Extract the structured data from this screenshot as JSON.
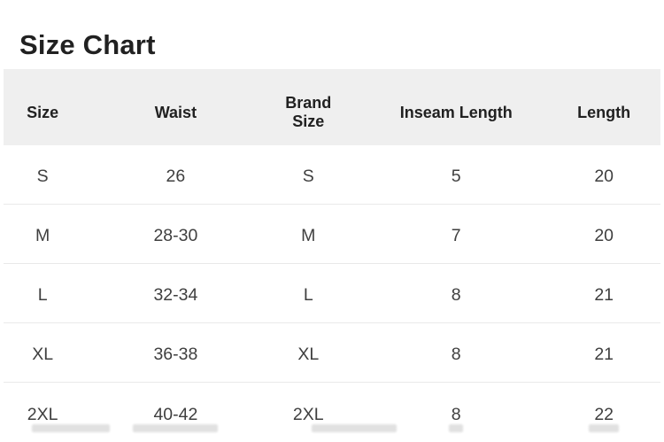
{
  "page": {
    "title": "Size Chart"
  },
  "table": {
    "columns": [
      "Size",
      "Waist",
      "Brand Size",
      "Inseam Length",
      "Length"
    ],
    "rows": [
      [
        "S",
        "26",
        "S",
        "5",
        "20"
      ],
      [
        "M",
        "28-30",
        "M",
        "7",
        "20"
      ],
      [
        "L",
        "32-34",
        "L",
        "8",
        "21"
      ],
      [
        "XL",
        "36-38",
        "XL",
        "8",
        "21"
      ],
      [
        "2XL",
        "40-42",
        "2XL",
        "8",
        "22"
      ]
    ]
  },
  "colors": {
    "page_bg": "#ffffff",
    "header_bg": "#efefef",
    "divider": "#e9e9e9",
    "title_text": "#212121",
    "header_text": "#212121",
    "body_text": "#3f3f3f"
  }
}
